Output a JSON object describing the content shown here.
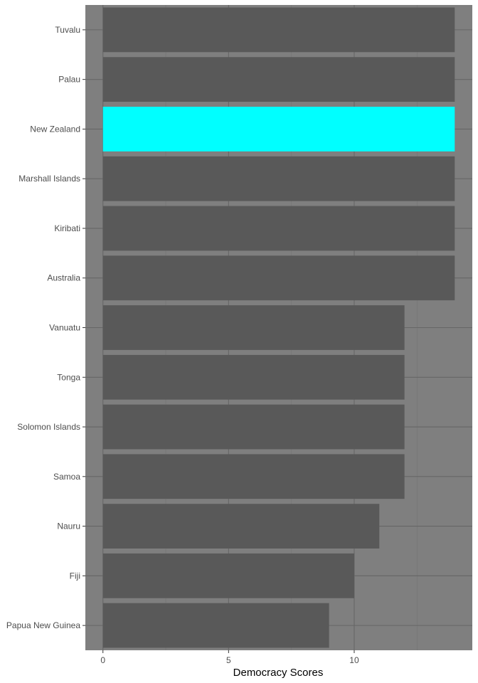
{
  "chart_data": {
    "type": "bar",
    "orientation": "horizontal",
    "title": "",
    "xlabel": "Democracy Scores",
    "ylabel": "",
    "categories": [
      "Tuvalu",
      "Palau",
      "New Zealand",
      "Marshall Islands",
      "Kiribati",
      "Australia",
      "Vanuatu",
      "Tonga",
      "Solomon Islands",
      "Samoa",
      "Nauru",
      "Fiji",
      "Papua New Guinea"
    ],
    "values": [
      14,
      14,
      14,
      14,
      14,
      14,
      12,
      12,
      12,
      12,
      11,
      10,
      9
    ],
    "highlight": "New Zealand",
    "xlim": [
      -0.7,
      14.7
    ],
    "xticks": [
      0,
      5,
      10
    ],
    "xtick_labels": [
      "0",
      "5",
      "10"
    ],
    "grid": true,
    "colors": {
      "panel_background": "#7f7f7f",
      "bar": "#595959",
      "highlight_bar": "#00ffff",
      "grid_major": "#666666",
      "grid_minor": "#737373"
    }
  }
}
